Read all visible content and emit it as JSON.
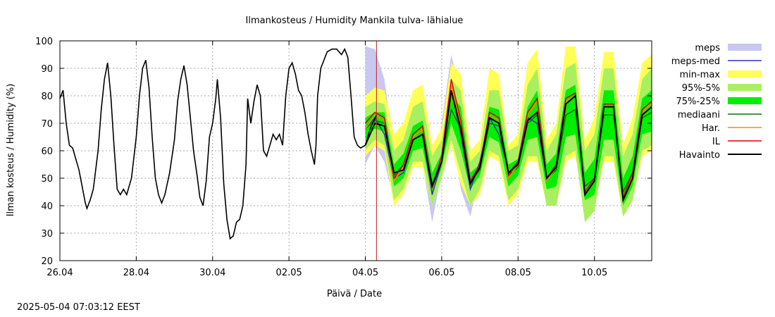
{
  "chart_data": {
    "type": "line",
    "title": "Ilmankosteus / Humidity  Mankila tulva- lähialue",
    "xlabel": "Päivä / Date",
    "ylabel": "Ilman kosteus / Humidity (%)",
    "ylim": [
      20,
      100
    ],
    "yticks": [
      20,
      30,
      40,
      50,
      60,
      70,
      80,
      90,
      100
    ],
    "xlim": [
      "2025-04-26",
      "2025-05-11 12:00"
    ],
    "xticks": [
      {
        "date": "2025-04-26",
        "label": "26.04"
      },
      {
        "date": "2025-04-28",
        "label": "28.04"
      },
      {
        "date": "2025-04-30",
        "label": "30.04"
      },
      {
        "date": "2025-05-02",
        "label": "02.05"
      },
      {
        "date": "2025-05-04",
        "label": "04.05"
      },
      {
        "date": "2025-05-06",
        "label": "06.05"
      },
      {
        "date": "2025-05-08",
        "label": "08.05"
      },
      {
        "date": "2025-05-10",
        "label": "10.05"
      }
    ],
    "grid": true,
    "legend_position": "right",
    "now_marker": "2025-05-04 07:00",
    "observed": {
      "name": "Havainto",
      "color": "#000000",
      "points": [
        [
          "2025-04-26 00:00",
          79
        ],
        [
          "2025-04-26 02:00",
          82
        ],
        [
          "2025-04-26 04:00",
          70
        ],
        [
          "2025-04-26 06:00",
          62
        ],
        [
          "2025-04-26 08:00",
          61
        ],
        [
          "2025-04-26 10:00",
          57
        ],
        [
          "2025-04-26 12:00",
          53
        ],
        [
          "2025-04-26 14:00",
          47
        ],
        [
          "2025-04-26 16:00",
          41
        ],
        [
          "2025-04-26 17:00",
          39
        ],
        [
          "2025-04-26 19:00",
          42
        ],
        [
          "2025-04-26 21:00",
          46
        ],
        [
          "2025-04-27 00:00",
          60
        ],
        [
          "2025-04-27 02:00",
          75
        ],
        [
          "2025-04-27 04:00",
          86
        ],
        [
          "2025-04-27 06:00",
          92
        ],
        [
          "2025-04-27 08:00",
          80
        ],
        [
          "2025-04-27 10:00",
          62
        ],
        [
          "2025-04-27 12:00",
          46
        ],
        [
          "2025-04-27 14:00",
          44
        ],
        [
          "2025-04-27 16:00",
          46
        ],
        [
          "2025-04-27 18:00",
          44
        ],
        [
          "2025-04-27 21:00",
          50
        ],
        [
          "2025-04-28 00:00",
          65
        ],
        [
          "2025-04-28 02:00",
          80
        ],
        [
          "2025-04-28 04:00",
          90
        ],
        [
          "2025-04-28 06:00",
          93
        ],
        [
          "2025-04-28 08:00",
          83
        ],
        [
          "2025-04-28 10:00",
          65
        ],
        [
          "2025-04-28 12:00",
          50
        ],
        [
          "2025-04-28 14:00",
          44
        ],
        [
          "2025-04-28 16:00",
          41
        ],
        [
          "2025-04-28 18:00",
          44
        ],
        [
          "2025-04-28 21:00",
          52
        ],
        [
          "2025-04-29 00:00",
          64
        ],
        [
          "2025-04-29 02:00",
          78
        ],
        [
          "2025-04-29 04:00",
          86
        ],
        [
          "2025-04-29 06:00",
          91
        ],
        [
          "2025-04-29 08:00",
          84
        ],
        [
          "2025-04-29 10:00",
          72
        ],
        [
          "2025-04-29 12:00",
          60
        ],
        [
          "2025-04-29 14:00",
          52
        ],
        [
          "2025-04-29 16:00",
          43
        ],
        [
          "2025-04-29 18:00",
          40
        ],
        [
          "2025-04-29 20:00",
          49
        ],
        [
          "2025-04-29 22:00",
          65
        ],
        [
          "2025-04-30 00:00",
          70
        ],
        [
          "2025-04-30 02:00",
          79
        ],
        [
          "2025-04-30 03:00",
          86
        ],
        [
          "2025-04-30 05:00",
          72
        ],
        [
          "2025-04-30 07:00",
          48
        ],
        [
          "2025-04-30 09:00",
          35
        ],
        [
          "2025-04-30 11:00",
          28
        ],
        [
          "2025-04-30 13:00",
          29
        ],
        [
          "2025-04-30 15:00",
          34
        ],
        [
          "2025-04-30 17:00",
          35
        ],
        [
          "2025-04-30 19:00",
          40
        ],
        [
          "2025-04-30 21:00",
          55
        ],
        [
          "2025-04-30 22:00",
          79
        ],
        [
          "2025-05-01 00:00",
          70
        ],
        [
          "2025-05-01 02:00",
          78
        ],
        [
          "2025-05-01 04:00",
          84
        ],
        [
          "2025-05-01 06:00",
          80
        ],
        [
          "2025-05-01 08:00",
          60
        ],
        [
          "2025-05-01 10:00",
          58
        ],
        [
          "2025-05-01 12:00",
          62
        ],
        [
          "2025-05-01 14:00",
          66
        ],
        [
          "2025-05-01 16:00",
          64
        ],
        [
          "2025-05-01 18:00",
          66
        ],
        [
          "2025-05-01 20:00",
          62
        ],
        [
          "2025-05-01 22:00",
          80
        ],
        [
          "2025-05-02 00:00",
          90
        ],
        [
          "2025-05-02 02:00",
          92
        ],
        [
          "2025-05-02 04:00",
          88
        ],
        [
          "2025-05-02 06:00",
          82
        ],
        [
          "2025-05-02 08:00",
          80
        ],
        [
          "2025-05-02 10:00",
          74
        ],
        [
          "2025-05-02 12:00",
          66
        ],
        [
          "2025-05-02 14:00",
          60
        ],
        [
          "2025-05-02 16:00",
          55
        ],
        [
          "2025-05-02 17:00",
          62
        ],
        [
          "2025-05-02 18:00",
          80
        ],
        [
          "2025-05-02 20:00",
          90
        ],
        [
          "2025-05-02 22:00",
          93
        ],
        [
          "2025-05-03 00:00",
          96
        ],
        [
          "2025-05-03 03:00",
          97
        ],
        [
          "2025-05-03 06:00",
          97
        ],
        [
          "2025-05-03 09:00",
          95
        ],
        [
          "2025-05-03 11:00",
          97
        ],
        [
          "2025-05-03 13:00",
          94
        ],
        [
          "2025-05-03 15:00",
          80
        ],
        [
          "2025-05-03 17:00",
          65
        ],
        [
          "2025-05-03 19:00",
          62
        ],
        [
          "2025-05-03 21:00",
          61
        ],
        [
          "2025-05-04 00:00",
          62
        ],
        [
          "2025-05-04 03:00",
          68
        ],
        [
          "2025-05-04 07:00",
          73
        ]
      ]
    },
    "forecast": {
      "x": [
        "2025-05-04 00:00",
        "2025-05-04 06:00",
        "2025-05-04 12:00",
        "2025-05-04 18:00",
        "2025-05-05 00:00",
        "2025-05-05 06:00",
        "2025-05-05 12:00",
        "2025-05-05 18:00",
        "2025-05-06 00:00",
        "2025-05-06 06:00",
        "2025-05-06 12:00",
        "2025-05-06 18:00",
        "2025-05-07 00:00",
        "2025-05-07 06:00",
        "2025-05-07 12:00",
        "2025-05-07 18:00",
        "2025-05-08 00:00",
        "2025-05-08 06:00",
        "2025-05-08 12:00",
        "2025-05-08 18:00",
        "2025-05-09 00:00",
        "2025-05-09 06:00",
        "2025-05-09 12:00",
        "2025-05-09 18:00",
        "2025-05-10 00:00",
        "2025-05-10 06:00",
        "2025-05-10 12:00",
        "2025-05-10 18:00",
        "2025-05-11 00:00",
        "2025-05-11 06:00",
        "2025-05-11 12:00"
      ],
      "series": [
        {
          "name": "meps",
          "kind": "band",
          "color": "#c8c8f0",
          "low": [
            55,
            62,
            56,
            42,
            46,
            56,
            55,
            34,
            52,
            70,
            46,
            36,
            52,
            66,
            58,
            48,
            52,
            66,
            60,
            46
          ],
          "high": [
            98,
            97,
            86,
            60,
            66,
            72,
            70,
            48,
            70,
            95,
            80,
            56,
            62,
            74,
            72,
            60,
            62,
            78,
            76,
            62
          ]
        },
        {
          "name": "min-max",
          "kind": "band",
          "color": "#ffff55",
          "low": [
            58,
            62,
            60,
            40,
            44,
            54,
            54,
            40,
            50,
            62,
            48,
            40,
            44,
            58,
            56,
            40,
            44,
            56,
            56,
            40,
            40,
            56,
            58,
            38,
            40,
            56,
            56,
            36,
            42,
            58,
            60
          ],
          "high": [
            80,
            83,
            82,
            66,
            70,
            82,
            84,
            62,
            68,
            92,
            88,
            60,
            64,
            90,
            88,
            62,
            66,
            92,
            97,
            64,
            70,
            98,
            98,
            64,
            72,
            96,
            96,
            62,
            72,
            92,
            95
          ]
        },
        {
          "name": "95%-5%",
          "kind": "band",
          "color": "#a8f060",
          "low": [
            60,
            64,
            62,
            42,
            46,
            56,
            56,
            40,
            50,
            64,
            52,
            40,
            46,
            60,
            58,
            42,
            46,
            58,
            58,
            40,
            40,
            58,
            60,
            34,
            38,
            58,
            58,
            36,
            42,
            60,
            62
          ],
          "high": [
            76,
            78,
            77,
            60,
            64,
            76,
            78,
            58,
            64,
            86,
            82,
            56,
            60,
            82,
            82,
            60,
            62,
            84,
            90,
            60,
            66,
            90,
            92,
            60,
            66,
            90,
            90,
            58,
            66,
            86,
            90
          ]
        },
        {
          "name": "75%-25%",
          "kind": "band",
          "color": "#00ee00",
          "low": [
            64,
            68,
            67,
            47,
            50,
            60,
            61,
            44,
            54,
            70,
            60,
            46,
            51,
            65,
            63,
            47,
            51,
            64,
            65,
            46,
            47,
            65,
            66,
            42,
            44,
            64,
            64,
            40,
            47,
            66,
            67
          ],
          "high": [
            72,
            74,
            74,
            55,
            59,
            69,
            71,
            52,
            59,
            80,
            76,
            52,
            55,
            76,
            75,
            55,
            57,
            76,
            82,
            55,
            59,
            82,
            84,
            52,
            57,
            82,
            82,
            50,
            58,
            79,
            82
          ]
        },
        {
          "name": "meps-med",
          "kind": "line",
          "color": "#3333bb",
          "values": [
            68,
            72,
            66,
            50,
            52,
            64,
            66,
            44,
            56,
            82,
            66,
            46,
            56,
            72,
            66,
            52,
            56,
            72,
            70,
            50
          ]
        },
        {
          "name": "mediaani",
          "kind": "line",
          "color": "#007700",
          "values": [
            68,
            71,
            70,
            51,
            55,
            64,
            66,
            48,
            56,
            75,
            68,
            49,
            53,
            70,
            69,
            51,
            54,
            70,
            73,
            50,
            53,
            73,
            75,
            47,
            50,
            73,
            73,
            45,
            52,
            72,
            74
          ]
        },
        {
          "name": "Har.",
          "kind": "line",
          "color": "#ff8800",
          "values": [
            68,
            73,
            71,
            49,
            54,
            65,
            68,
            46,
            57,
            84,
            70,
            48,
            54,
            73,
            71,
            50,
            55,
            73,
            78,
            49,
            54,
            78,
            80,
            44,
            49,
            76,
            76,
            42,
            51,
            74,
            77
          ]
        },
        {
          "name": "IL",
          "kind": "line",
          "color": "#dd0000",
          "values": [
            70,
            74,
            72,
            50,
            55,
            66,
            69,
            47,
            58,
            86,
            71,
            49,
            55,
            74,
            72,
            51,
            56,
            74,
            79,
            50,
            55,
            79,
            81,
            45,
            50,
            77,
            77,
            43,
            52,
            75,
            78
          ]
        },
        {
          "name": "Havainto",
          "kind": "line",
          "color": "#000000",
          "values": [
            62,
            70,
            69,
            52,
            53,
            64,
            66,
            47,
            56,
            82,
            68,
            48,
            54,
            72,
            70,
            52,
            55,
            71,
            74,
            50,
            54,
            77,
            80,
            44,
            49,
            76,
            76,
            42,
            50,
            73,
            76
          ]
        }
      ]
    }
  },
  "footer": {
    "timestamp": "2025-05-04 07:03:12 EEST"
  }
}
